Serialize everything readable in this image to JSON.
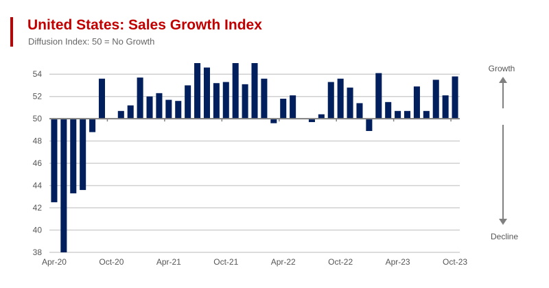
{
  "chart_data": {
    "type": "bar",
    "title": "United States: Sales Growth Index",
    "subtitle": "Diffusion Index: 50 = No Growth",
    "baseline": 50,
    "ylim": [
      38,
      55
    ],
    "yticks": [
      38,
      40,
      42,
      44,
      46,
      48,
      50,
      52,
      54
    ],
    "grid": true,
    "xtick_labels": [
      "Apr-20",
      "Oct-20",
      "Apr-21",
      "Oct-21",
      "Apr-22",
      "Oct-22",
      "Apr-23",
      "Oct-23"
    ],
    "categories": [
      "Apr-20",
      "May-20",
      "Jun-20",
      "Jul-20",
      "Aug-20",
      "Sep-20",
      "Oct-20",
      "Nov-20",
      "Dec-20",
      "Jan-21",
      "Feb-21",
      "Mar-21",
      "Apr-21",
      "May-21",
      "Jun-21",
      "Jul-21",
      "Aug-21",
      "Sep-21",
      "Oct-21",
      "Nov-21",
      "Dec-21",
      "Jan-22",
      "Feb-22",
      "Mar-22",
      "Apr-22",
      "May-22",
      "Jun-22",
      "Jul-22",
      "Aug-22",
      "Sep-22",
      "Oct-22",
      "Nov-22",
      "Dec-22",
      "Jan-23",
      "Feb-23",
      "Mar-23",
      "Apr-23",
      "May-23",
      "Jun-23",
      "Jul-23",
      "Aug-23",
      "Sep-23",
      "Oct-23"
    ],
    "values": [
      42.5,
      37.9,
      43.3,
      43.6,
      48.8,
      53.6,
      50.0,
      50.7,
      51.2,
      53.7,
      52.0,
      52.3,
      51.7,
      51.6,
      53.0,
      55.1,
      54.6,
      53.2,
      53.3,
      55.1,
      53.1,
      55.1,
      53.6,
      49.6,
      51.8,
      52.1,
      50.0,
      49.7,
      50.4,
      53.3,
      53.6,
      52.8,
      51.4,
      48.9,
      54.1,
      51.5,
      50.7,
      50.7,
      52.9,
      50.7,
      53.5,
      52.1,
      53.8
    ],
    "annotations": {
      "up": "Growth",
      "down": "Decline"
    },
    "colors": {
      "bar": "#001f5c",
      "title": "#c00000",
      "grid": "#d0d0d0",
      "axis": "#808080"
    }
  }
}
